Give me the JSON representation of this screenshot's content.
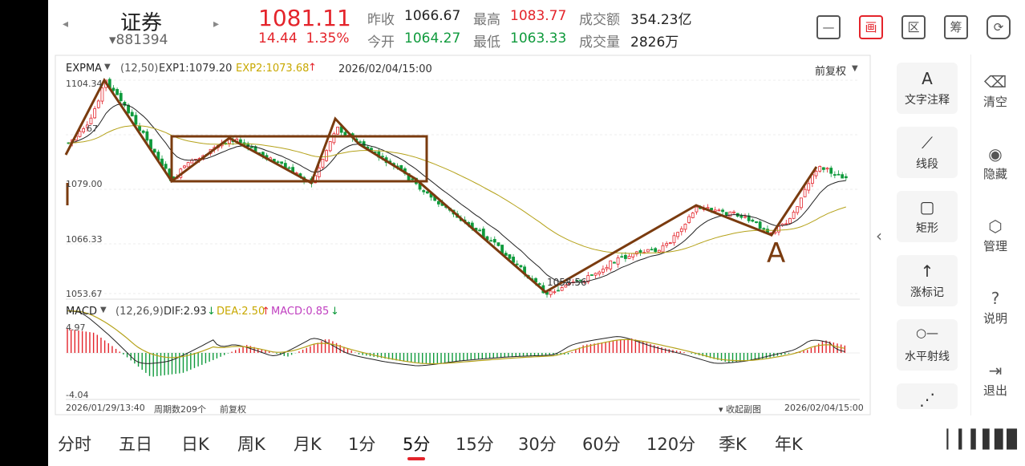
{
  "header": {
    "prev_arrow": "◂",
    "next_arrow": "▸",
    "name": "证券",
    "code": "▾881394",
    "price": "1081.11",
    "change": "14.44",
    "change_pct": "1.35%",
    "quotes": {
      "prev_close_label": "昨收",
      "prev_close": "1066.67",
      "open_label": "今开",
      "open": "1064.27",
      "high_label": "最高",
      "high": "1083.77",
      "low_label": "最低",
      "low": "1063.33",
      "amount_label": "成交额",
      "amount": "354.23亿",
      "volume_label": "成交量",
      "volume": "2826万"
    },
    "icons": [
      {
        "name": "minimize-icon",
        "glyph": "—"
      },
      {
        "name": "canvas-icon",
        "glyph": "画"
      },
      {
        "name": "region-icon",
        "glyph": "区"
      },
      {
        "name": "chip-icon",
        "glyph": "筹"
      },
      {
        "name": "rotate-screen-icon",
        "glyph": "⟳"
      }
    ]
  },
  "main_chart": {
    "indicator": "EXPMA",
    "params": "(12,50)",
    "exp1_label": "EXP1:1079.20",
    "exp2_label": "EXP2:1073.68",
    "datetime": "2026/02/04/15:00",
    "adjust": "前复权",
    "price_high_label": "1104.34",
    "price_partial_label": "67",
    "price_mid_label": "1079.00",
    "price_low2_label": "1066.33",
    "price_low_label": "1053.67",
    "min_marker": "1058.56",
    "annotation": "A"
  },
  "macd": {
    "name": "MACD",
    "params": "(12,26,9)",
    "dif": "DIF:2.93",
    "dea": "DEA:2.50",
    "macd": "MACD:0.85",
    "top_label": "4.97",
    "bottom_label": "-4.04"
  },
  "footer": {
    "start_time": "2026/01/29/13:40",
    "periods": "周期数209个",
    "adjust": "前复权",
    "collapse": "收起副图",
    "end_time": "2026/02/04/15:00"
  },
  "tools": [
    {
      "name": "text-annotation",
      "icon": "A",
      "label": "文字注释"
    },
    {
      "name": "line-segment",
      "icon": "⟋",
      "label": "线段"
    },
    {
      "name": "rectangle",
      "icon": "▢",
      "label": "矩形"
    },
    {
      "name": "rise-mark",
      "icon": "↑",
      "label": "涨标记"
    },
    {
      "name": "horizontal-ray",
      "icon": "○—",
      "label": "水平射线"
    },
    {
      "name": "more",
      "icon": "⋰",
      "label": ""
    }
  ],
  "side": [
    {
      "name": "clear",
      "icon": "⌫",
      "label": "清空"
    },
    {
      "name": "hide",
      "icon": "◉",
      "label": "隐藏"
    },
    {
      "name": "manage",
      "icon": "⬡",
      "label": "管理"
    },
    {
      "name": "help",
      "icon": "?",
      "label": "说明"
    },
    {
      "name": "exit",
      "icon": "⇥",
      "label": "退出"
    }
  ],
  "tabs": [
    "分时",
    "五日",
    "日K",
    "周K",
    "月K",
    "1分",
    "5分",
    "15分",
    "30分",
    "60分",
    "120分",
    "季K",
    "年K"
  ],
  "active_tab": "5分",
  "colors": {
    "up": "#e4242b",
    "down": "#0f9a3c",
    "exp1": "#222222",
    "exp2": "#b5a21a",
    "draw": "#7a3b0f",
    "macd": "#c040c0"
  }
}
